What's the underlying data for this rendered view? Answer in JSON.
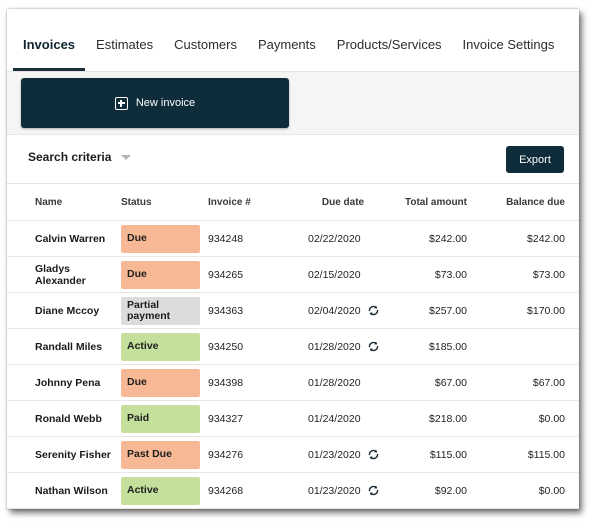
{
  "tabs": [
    {
      "label": "Invoices",
      "active": true
    },
    {
      "label": "Estimates",
      "active": false
    },
    {
      "label": "Customers",
      "active": false
    },
    {
      "label": "Payments",
      "active": false
    },
    {
      "label": "Products/Services",
      "active": false
    },
    {
      "label": "Invoice Settings",
      "active": false
    }
  ],
  "actions": {
    "new_invoice_label": "New invoice",
    "export_label": "Export"
  },
  "search": {
    "label": "Search criteria"
  },
  "table": {
    "headers": {
      "name": "Name",
      "status": "Status",
      "invoice": "Invoice #",
      "due_date": "Due date",
      "total": "Total amount",
      "balance": "Balance due"
    },
    "rows": [
      {
        "name": "Calvin Warren",
        "status": "Due",
        "status_type": "due",
        "invoice": "934248",
        "due_date": "02/22/2020",
        "recurring": false,
        "total": "$242.00",
        "balance": "$242.00"
      },
      {
        "name": "Gladys Alexander",
        "status": "Due",
        "status_type": "due",
        "invoice": "934265",
        "due_date": "02/15/2020",
        "recurring": false,
        "total": "$73.00",
        "balance": "$73.00"
      },
      {
        "name": "Diane Mccoy",
        "status": "Partial payment",
        "status_type": "partial",
        "invoice": "934363",
        "due_date": "02/04/2020",
        "recurring": true,
        "total": "$257.00",
        "balance": "$170.00"
      },
      {
        "name": "Randall Miles",
        "status": "Active",
        "status_type": "active",
        "invoice": "934250",
        "due_date": "01/28/2020",
        "recurring": true,
        "total": "$185.00",
        "balance": ""
      },
      {
        "name": "Johnny Pena",
        "status": "Due",
        "status_type": "due",
        "invoice": "934398",
        "due_date": "01/28/2020",
        "recurring": false,
        "total": "$67.00",
        "balance": "$67.00"
      },
      {
        "name": "Ronald Webb",
        "status": "Paid",
        "status_type": "paid",
        "invoice": "934327",
        "due_date": "01/24/2020",
        "recurring": false,
        "total": "$218.00",
        "balance": "$0.00"
      },
      {
        "name": "Serenity Fisher",
        "status": "Past Due",
        "status_type": "due",
        "invoice": "934276",
        "due_date": "01/23/2020",
        "recurring": true,
        "total": "$115.00",
        "balance": "$115.00"
      },
      {
        "name": "Nathan Wilson",
        "status": "Active",
        "status_type": "active",
        "invoice": "934268",
        "due_date": "01/23/2020",
        "recurring": true,
        "total": "$92.00",
        "balance": "$0.00"
      }
    ]
  },
  "icons": {
    "new_invoice": "plus-square-icon",
    "search_toggle": "caret-down-icon",
    "recurring": "sync-icon"
  },
  "colors": {
    "primary": "#0f2c3a",
    "status_due": "#f7b995",
    "status_active": "#c4e09c",
    "status_partial": "#dcdcda"
  }
}
